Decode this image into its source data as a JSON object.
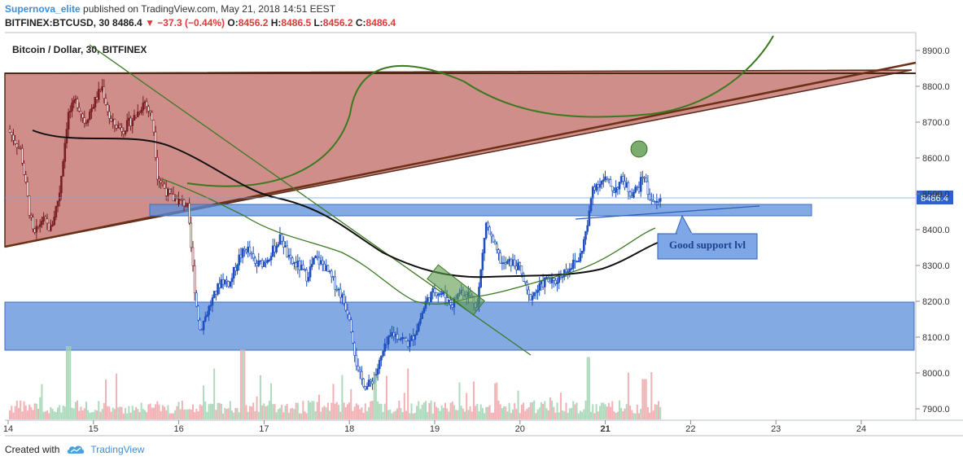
{
  "header": {
    "author": "Supernova_elite",
    "published_text": "published on TradingView.com, May 21, 2018 14:51 EEST",
    "symbol": "BITFINEX:BTCUSD, 30",
    "price": "8486.4",
    "change": "▼ −37.3 (−0.44%)",
    "o_label": "O:",
    "o_value": "8456.2",
    "h_label": "H:",
    "h_value": "8486.5",
    "l_label": "L:",
    "l_value": "8456.2",
    "c_label": "C:",
    "c_value": "8486.4"
  },
  "footer": {
    "created_with": "Created with",
    "brand": "TradingView"
  },
  "chart_data": {
    "type": "candlestick",
    "title": "Bitcoin / Dollar, 30, BITFINEX",
    "y_axis": {
      "ticks": [
        "8900.0",
        "8800.0",
        "8700.0",
        "8600.0",
        "8500.0",
        "8400.0",
        "8300.0",
        "8200.0",
        "8100.0",
        "8000.0",
        "7900.0"
      ],
      "range": [
        7880,
        8930
      ]
    },
    "x_axis": {
      "ticks": [
        "14",
        "15",
        "16",
        "17",
        "18",
        "19",
        "20",
        "21",
        "22",
        "23",
        "24"
      ],
      "range_days": [
        14,
        24.6
      ]
    },
    "last_price": "8486.4",
    "annotations": [
      "Good support lvl"
    ],
    "price_path": [
      [
        14.0,
        8680
      ],
      [
        14.15,
        8620
      ],
      [
        14.25,
        8450
      ],
      [
        14.3,
        8380
      ],
      [
        14.4,
        8430
      ],
      [
        14.5,
        8400
      ],
      [
        14.6,
        8500
      ],
      [
        14.7,
        8720
      ],
      [
        14.8,
        8760
      ],
      [
        14.9,
        8700
      ],
      [
        15.0,
        8750
      ],
      [
        15.1,
        8800
      ],
      [
        15.2,
        8700
      ],
      [
        15.35,
        8680
      ],
      [
        15.5,
        8720
      ],
      [
        15.6,
        8760
      ],
      [
        15.7,
        8700
      ],
      [
        15.75,
        8550
      ],
      [
        15.9,
        8490
      ],
      [
        16.0,
        8480
      ],
      [
        16.1,
        8470
      ],
      [
        16.2,
        8200
      ],
      [
        16.25,
        8120
      ],
      [
        16.35,
        8180
      ],
      [
        16.5,
        8260
      ],
      [
        16.6,
        8250
      ],
      [
        16.7,
        8320
      ],
      [
        16.8,
        8350
      ],
      [
        16.9,
        8300
      ],
      [
        17.0,
        8310
      ],
      [
        17.1,
        8340
      ],
      [
        17.2,
        8380
      ],
      [
        17.3,
        8310
      ],
      [
        17.4,
        8300
      ],
      [
        17.5,
        8270
      ],
      [
        17.6,
        8320
      ],
      [
        17.7,
        8300
      ],
      [
        17.8,
        8260
      ],
      [
        17.9,
        8220
      ],
      [
        18.0,
        8160
      ],
      [
        18.05,
        8080
      ],
      [
        18.1,
        8000
      ],
      [
        18.2,
        7960
      ],
      [
        18.3,
        7990
      ],
      [
        18.4,
        8060
      ],
      [
        18.5,
        8110
      ],
      [
        18.6,
        8100
      ],
      [
        18.7,
        8080
      ],
      [
        18.8,
        8130
      ],
      [
        18.9,
        8200
      ],
      [
        19.0,
        8230
      ],
      [
        19.1,
        8220
      ],
      [
        19.2,
        8190
      ],
      [
        19.3,
        8230
      ],
      [
        19.4,
        8220
      ],
      [
        19.5,
        8190
      ],
      [
        19.6,
        8420
      ],
      [
        19.7,
        8350
      ],
      [
        19.8,
        8300
      ],
      [
        19.9,
        8310
      ],
      [
        20.0,
        8290
      ],
      [
        20.1,
        8210
      ],
      [
        20.2,
        8230
      ],
      [
        20.3,
        8260
      ],
      [
        20.4,
        8250
      ],
      [
        20.5,
        8280
      ],
      [
        20.6,
        8300
      ],
      [
        20.7,
        8320
      ],
      [
        20.8,
        8420
      ],
      [
        20.85,
        8520
      ],
      [
        21.0,
        8540
      ],
      [
        21.1,
        8510
      ],
      [
        21.2,
        8540
      ],
      [
        21.3,
        8500
      ],
      [
        21.4,
        8520
      ],
      [
        21.45,
        8560
      ],
      [
        21.5,
        8500
      ],
      [
        21.6,
        8470
      ],
      [
        21.65,
        8486
      ]
    ],
    "volume_peaks": [
      [
        14.7,
        1.0
      ],
      [
        16.75,
        0.95
      ],
      [
        20.8,
        0.85
      ],
      [
        21.45,
        0.55
      ],
      [
        18.3,
        0.6
      ]
    ]
  }
}
